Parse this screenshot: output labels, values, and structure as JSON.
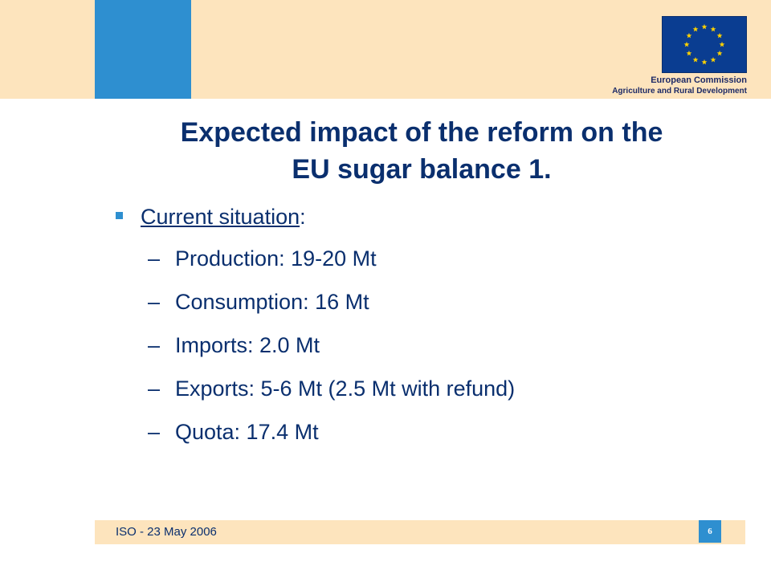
{
  "header": {
    "logo": {
      "line1": "European Commission",
      "line2": "Agriculture and Rural Development",
      "flag_color": "#0a3d91",
      "star_color": "#ffd200"
    },
    "band_color": "#fde4bd",
    "accent_color": "#2e8fd0"
  },
  "slide": {
    "title_line1": "Expected impact of the reform on the",
    "title_line2": "EU sugar balance 1.",
    "bullet": {
      "label": "Current situation",
      "suffix": ":",
      "marker_icon": "square-bullet-icon"
    },
    "sub_items": [
      {
        "dash": "–",
        "text": "Production: 19-20 Mt"
      },
      {
        "dash": "–",
        "text": "Consumption: 16 Mt"
      },
      {
        "dash": "–",
        "text": "Imports: 2.0 Mt"
      },
      {
        "dash": "–",
        "text": "Exports: 5-6 Mt (2.5 Mt with refund)"
      },
      {
        "dash": "–",
        "text": "Quota: 17.4 Mt"
      }
    ]
  },
  "footer": {
    "text": "ISO - 23 May 2006",
    "page_number": "6"
  }
}
